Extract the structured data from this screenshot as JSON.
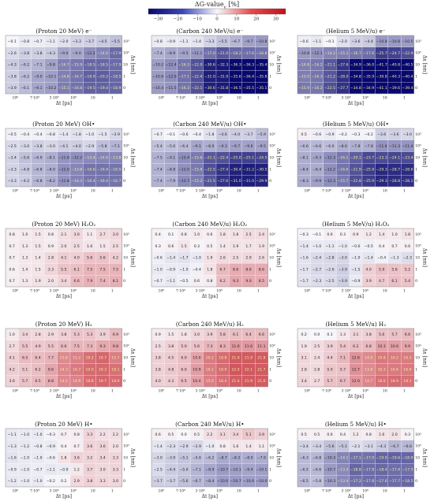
{
  "colorbar": {
    "label": "ΔG-value_{y} [%]",
    "ticks": [
      -30,
      -20,
      -10,
      0,
      10,
      20,
      30
    ],
    "range": [
      -35,
      35
    ],
    "colors": {
      "negative": "#08086e",
      "zero": "#f7f7fb",
      "positive": "#c0121c"
    }
  },
  "chart_data": [
    {
      "type": "heatmap",
      "title": "(Proton 20 MeV) e⁻",
      "xlabel": "Δt [ps]",
      "ylabel": "Δx [nm]",
      "x_ticks": [
        "10⁰",
        "7·10⁰",
        "3·10⁰",
        "10⁰",
        "10",
        "1"
      ],
      "y_ticks": [
        "10³",
        "10²",
        "10",
        "1",
        "0"
      ],
      "values": [
        [
          -0.1,
          -0.8,
          -0.7,
          -1.1,
          -2.0,
          -3.3,
          -3.7,
          -4.5,
          -5.5
        ],
        [
          -2.6,
          -3.8,
          -3.8,
          -4.3,
          -9.0,
          -9.0,
          -12.2,
          -14.0,
          -17.9
        ],
        [
          -4.3,
          -6.2,
          -7.1,
          -9.8,
          -14.7,
          -15.9,
          -18.5,
          -18.5,
          -17.9
        ],
        [
          -3.8,
          -6.2,
          -9.0,
          -10.1,
          -14.8,
          -16.7,
          -19.9,
          -20.2,
          -18.5
        ],
        [
          -3.9,
          -6.1,
          -9.1,
          -10.2,
          -15.1,
          -16.8,
          -19.5,
          -19.4,
          -18.9
        ]
      ]
    },
    {
      "type": "heatmap",
      "title": "(Carbon 240 MeV/u) e⁻",
      "xlabel": "Δt [ps]",
      "ylabel": "Δx [nm]",
      "x_ticks": [
        "10⁰",
        "7·10⁰",
        "3·10⁰",
        "10⁰",
        "10",
        "1"
      ],
      "y_ticks": [
        "10³",
        "10²",
        "10",
        "1",
        "0"
      ],
      "values": [
        [
          -0.8,
          -0.9,
          -1.1,
          -1.4,
          -3.3,
          -5.5,
          -6.7,
          -9.7,
          -10.8
        ],
        [
          -7.4,
          -8.9,
          -9.5,
          -11.1,
          -17.0,
          -21.0,
          -18.2,
          -17.6,
          -16.8
        ],
        [
          -10.2,
          -12.4,
          -16.3,
          -22.0,
          -30.6,
          -32.3,
          -36.3,
          -36.3,
          -35.4
        ],
        [
          -10.6,
          -12.6,
          -17.1,
          -22.4,
          -31.0,
          -31.9,
          -35.6,
          -36.4,
          -35.8
        ],
        [
          -10.4,
          -11.5,
          -16.3,
          -22.1,
          -30.6,
          -31.8,
          -36.5,
          -35.5,
          -35.1
        ]
      ]
    },
    {
      "type": "heatmap",
      "title": "(Helium 5 MeV/u) e⁻",
      "xlabel": "Δt [ps]",
      "ylabel": "Δx [nm]",
      "x_ticks": [
        "10⁰",
        "7·10⁰",
        "3·10⁰",
        "10⁰",
        "10",
        "1"
      ],
      "y_ticks": [
        "10³",
        "10²",
        "10",
        "1",
        "0"
      ],
      "values": [
        [
          -0.6,
          -1.1,
          -0.1,
          -2.0,
          -3.6,
          -4.4,
          -10.8,
          -10.8,
          -10.5
        ],
        [
          -10.8,
          -12.1,
          -14.2,
          -15.1,
          -16.7,
          -17.6,
          -25.7,
          -24.7,
          -22.9
        ],
        [
          -14.8,
          -16.2,
          -21.1,
          -27.6,
          -34.9,
          -36.0,
          -41.7,
          -40.8,
          -40.5
        ],
        [
          -15.0,
          -16.3,
          -21.2,
          -28.0,
          -34.8,
          -35.9,
          -39.8,
          -40.3,
          -40.4
        ],
        [
          -15.9,
          -16.2,
          -22.5,
          -27.7,
          -34.8,
          -34.9,
          -41.1,
          -39.6,
          -39.4
        ]
      ]
    },
    {
      "type": "heatmap",
      "title": "(Proton 20 MeV) OH•",
      "xlabel": "Δt [ps]",
      "ylabel": "Δx [nm]",
      "x_ticks": [
        "10⁰",
        "7·10⁰",
        "3·10⁰",
        "10⁰",
        "10",
        "1"
      ],
      "y_ticks": [
        "10³",
        "10²",
        "10",
        "1",
        "0"
      ],
      "values": [
        [
          -0.5,
          -0.4,
          -0.4,
          -0.8,
          -1.4,
          -1.8,
          -1.0,
          -1.5,
          -2.9
        ],
        [
          -2.5,
          -3.0,
          -3.8,
          -3.0,
          -4.1,
          -4.0,
          -2.9,
          -5.8,
          -7.1
        ],
        [
          -3.4,
          -5.6,
          -6.9,
          -8.1,
          -11.6,
          -12.2,
          -13.4,
          -14.0,
          -13.8
        ],
        [
          -3.3,
          -4.8,
          -6.8,
          -8.0,
          -12.0,
          -13.8,
          -16.6,
          -16.9,
          -16.5
        ],
        [
          -3.3,
          -4.2,
          -6.8,
          -8.2,
          -11.8,
          -14.3,
          -16.4,
          -16.4,
          -16.7
        ]
      ]
    },
    {
      "type": "heatmap",
      "title": "(Carbon 240 MeV/u) OH•",
      "xlabel": "Δt [ps]",
      "ylabel": "Δx [nm]",
      "x_ticks": [
        "10⁰",
        "7·10⁰",
        "3·10⁰",
        "10⁰",
        "10",
        "1"
      ],
      "y_ticks": [
        "10³",
        "10²",
        "10",
        "1",
        "0"
      ],
      "values": [
        [
          -0.7,
          -0.1,
          -0.6,
          -0.4,
          -1.8,
          -4.6,
          -4.0,
          -3.7,
          -5.9
        ],
        [
          -5.4,
          -5.6,
          -6.4,
          -9.1,
          -8.0,
          -9.3,
          -9.7,
          -9.6,
          -9.5
        ],
        [
          -7.5,
          -9.1,
          -12.4,
          -15.6,
          -21.1,
          -22.4,
          -25.0,
          -25.1,
          -24.5
        ],
        [
          -7.4,
          -8.8,
          -12.0,
          -15.8,
          -22.5,
          -27.4,
          -30.4,
          -31.2,
          -30.5
        ],
        [
          -7.4,
          -7.9,
          -12.7,
          -15.2,
          -21.5,
          -27.6,
          -31.0,
          -31.0,
          -29.9
        ]
      ]
    },
    {
      "type": "heatmap",
      "title": "(Helium 5 MeV/u) OH•",
      "xlabel": "Δt [ps]",
      "ylabel": "Δx [nm]",
      "x_ticks": [
        "10⁰",
        "7·10⁰",
        "3·10⁰",
        "10⁰",
        "10",
        "1"
      ],
      "y_ticks": [
        "10³",
        "10²",
        "10",
        "1",
        "0"
      ],
      "values": [
        [
          0.5,
          -0.6,
          -0.9,
          -0.2,
          -0.3,
          -0.2,
          -3.6,
          -3.6,
          -3.0
        ],
        [
          -6.6,
          -6.6,
          -6.0,
          -8.0,
          -7.8,
          -7.8,
          -11.6,
          -11.3,
          -11.4
        ],
        [
          -8.1,
          -9.3,
          -12.3,
          -16.1,
          -20.1,
          -23.7,
          -23.3,
          -24.1,
          -23.4
        ],
        [
          -8.4,
          -8.4,
          -12.2,
          -16.6,
          -21.9,
          -25.9,
          -29.3,
          -28.7,
          -28.6
        ],
        [
          -8.3,
          -9.9,
          -12.3,
          -15.7,
          -22.8,
          -25.9,
          -29.3,
          -28.8,
          -28.1
        ]
      ]
    },
    {
      "type": "heatmap",
      "title": "(Proton 20 MeV) H₂O₂",
      "xlabel": "Δt [ps]",
      "ylabel": "Δx [nm]",
      "x_ticks": [
        "10⁰",
        "7·10⁰",
        "3·10⁰",
        "10⁰",
        "10",
        "1"
      ],
      "y_ticks": [
        "10³",
        "10²",
        "10",
        "1",
        "0"
      ],
      "values": [
        [
          0.8,
          1.0,
          1.5,
          0.8,
          2.1,
          3.0,
          1.1,
          2.7,
          3.0
        ],
        [
          0.7,
          1.3,
          1.5,
          0.9,
          2.0,
          2.5,
          1.6,
          1.5,
          2.5
        ],
        [
          0.7,
          1.3,
          1.4,
          2.8,
          4.1,
          4.0,
          5.6,
          5.6,
          4.2
        ],
        [
          0.6,
          1.4,
          1.5,
          3.3,
          5.5,
          6.1,
          7.5,
          7.5,
          7.5
        ],
        [
          0.7,
          1.3,
          1.9,
          2.0,
          3.4,
          6.6,
          7.9,
          7.4,
          8.1
        ]
      ]
    },
    {
      "type": "heatmap",
      "title": "(Carbon 240 MeV/u) H₂O₂",
      "xlabel": "Δt [ps]",
      "ylabel": "Δx [nm]",
      "x_ticks": [
        "10⁰",
        "7·10⁰",
        "3·10⁰",
        "10⁰",
        "10",
        "1"
      ],
      "y_ticks": [
        "10³",
        "10²",
        "10",
        "1",
        "0"
      ],
      "values": [
        [
          0.4,
          0.1,
          0.8,
          1.0,
          0.6,
          1.8,
          1.8,
          2.5,
          2.4
        ],
        [
          0.3,
          0.6,
          1.5,
          0.3,
          0.5,
          1.4,
          1.9,
          1.7,
          1.9
        ],
        [
          -0.6,
          -1.4,
          -1.7,
          -1.0,
          1.9,
          2.6,
          2.5,
          2.9,
          2.6
        ],
        [
          -1.0,
          -0.9,
          -1.0,
          -0.4,
          1.8,
          6.7,
          8.6,
          8.6,
          8.6
        ],
        [
          -0.7,
          -1.1,
          -0.5,
          0.6,
          0.8,
          6.2,
          9.3,
          9.0,
          8.5
        ]
      ]
    },
    {
      "type": "heatmap",
      "title": "(Helium 5 MeV/u) H₂O₂",
      "xlabel": "Δt [ps]",
      "ylabel": "Δx [nm]",
      "x_ticks": [
        "10⁰",
        "7·10⁰",
        "3·10⁰",
        "10⁰",
        "10",
        "1"
      ],
      "y_ticks": [
        "10³",
        "10²",
        "10",
        "1",
        "0"
      ],
      "values": [
        [
          -0.3,
          -0.1,
          0.6,
          0.3,
          0.9,
          1.2,
          1.4,
          1.0,
          1.8
        ],
        [
          -1.4,
          -1.0,
          -1.1,
          -1.0,
          -0.6,
          -0.5,
          0.4,
          0.7,
          0.6
        ],
        [
          -1.6,
          -2.4,
          -2.8,
          -3.0,
          -1.0,
          -1.4,
          -0.4,
          -1.3,
          -2.3
        ],
        [
          -1.7,
          -2.7,
          -2.6,
          -3.9,
          -1.5,
          4.0,
          5.9,
          5.6,
          5.2
        ],
        [
          -1.7,
          -2.3,
          -2.5,
          -3.9,
          -0.9,
          3.9,
          4.7,
          6.1,
          5.4
        ]
      ]
    },
    {
      "type": "heatmap",
      "title": "(Proton 20 MeV) H₂",
      "xlabel": "Δt [ps]",
      "ylabel": "Δx [nm]",
      "x_ticks": [
        "10⁰",
        "7·10⁰",
        "3·10⁰",
        "10⁰",
        "10",
        "1"
      ],
      "y_ticks": [
        "10³",
        "10²",
        "10",
        "1",
        "0"
      ],
      "values": [
        [
          1.0,
          3.4,
          2.8,
          2.9,
          3.8,
          5.3,
          5.3,
          3.9,
          6.9
        ],
        [
          2.7,
          5.5,
          4.9,
          5.5,
          6.6,
          7.5,
          7.3,
          9.3,
          9.8
        ],
        [
          4.1,
          6.5,
          6.4,
          7.7,
          13.8,
          15.2,
          18.2,
          19.7,
          15.7
        ],
        [
          4.2,
          5.1,
          6.2,
          9.6,
          14.3,
          16.7,
          19.0,
          19.3,
          18.1
        ],
        [
          3.6,
          5.7,
          6.5,
          8.8,
          14.2,
          14.9,
          18.8,
          19.7,
          18.9
        ]
      ]
    },
    {
      "type": "heatmap",
      "title": "(Carbon 240 MeV/u) H₂",
      "xlabel": "Δt [ps]",
      "ylabel": "Δx [nm]",
      "x_ticks": [
        "10⁰",
        "7·10⁰",
        "3·10⁰",
        "10⁰",
        "10",
        "1"
      ],
      "y_ticks": [
        "10³",
        "10²",
        "10",
        "1",
        "0"
      ],
      "values": [
        [
          0.9,
          1.5,
          1.8,
          3.0,
          3.9,
          5.8,
          6.1,
          6.4,
          6.6
        ],
        [
          2.5,
          3.8,
          5.0,
          5.6,
          7.3,
          8.3,
          11.6,
          11.6,
          11.1
        ],
        [
          3.8,
          4.5,
          6.0,
          10.0,
          16.2,
          18.8,
          21.9,
          21.9,
          21.8
        ],
        [
          3.8,
          4.8,
          6.0,
          10.9,
          16.1,
          18.9,
          22.5,
          22.1,
          21.7
        ],
        [
          4.0,
          4.3,
          6.5,
          10.4,
          15.6,
          18.4,
          21.4,
          21.9,
          21.6
        ]
      ]
    },
    {
      "type": "heatmap",
      "title": "(Helium 5 MeV/u) H₂",
      "xlabel": "Δt [ps]",
      "ylabel": "Δx [nm]",
      "x_ticks": [
        "10⁰",
        "7·10⁰",
        "3·10⁰",
        "10⁰",
        "10",
        "1"
      ],
      "y_ticks": [
        "10³",
        "10²",
        "10",
        "1",
        "0"
      ],
      "values": [
        [
          0.2,
          -0.0,
          0.1,
          1.3,
          3.1,
          3.8,
          5.6,
          5.7,
          6.6
        ],
        [
          1.9,
          2.5,
          3.9,
          5.4,
          6.2,
          6.8,
          10.3,
          10.6,
          9.9
        ],
        [
          3.1,
          2.4,
          4.4,
          7.1,
          12.6,
          14.0,
          16.8,
          16.2,
          16.3
        ],
        [
          2.8,
          2.8,
          5.0,
          5.7,
          12.7,
          13.8,
          16.3,
          16.6,
          16.6
        ],
        [
          3.4,
          2.7,
          5.7,
          6.7,
          12.0,
          14.7,
          18.0,
          18.9,
          18.1
        ]
      ]
    },
    {
      "type": "heatmap",
      "title": "(Proton 20 MeV) H•",
      "xlabel": "Δt [ps]",
      "ylabel": "Δx [nm]",
      "x_ticks": [
        "10⁰",
        "7·10⁰",
        "3·10⁰",
        "10⁰",
        "10",
        "1"
      ],
      "y_ticks": [
        "10³",
        "10²",
        "10",
        "1",
        "0"
      ],
      "values": [
        [
          -1.1,
          -1.0,
          -1.0,
          -0.3,
          0.7,
          0.8,
          3.3,
          2.2,
          2.2
        ],
        [
          -1.3,
          -1.2,
          -0.8,
          -0.9,
          0.4,
          0.7,
          3.6,
          3.6,
          2.0
        ],
        [
          -1.6,
          -1.0,
          -1.0,
          -0.6,
          1.8,
          3.6,
          3.2,
          3.4,
          3.3
        ],
        [
          -0.9,
          -1.0,
          -0.7,
          -1.1,
          -0.9,
          1.2,
          3.7,
          3.0,
          3.3
        ],
        [
          -1.2,
          -1.0,
          -1.0,
          -0.2,
          0.2,
          2.9,
          3.8,
          3.3,
          3.0
        ]
      ]
    },
    {
      "type": "heatmap",
      "title": "(Carbon 240 MeV/u) H•",
      "xlabel": "Δt [ps]",
      "ylabel": "Δx [nm]",
      "x_ticks": [
        "10⁰",
        "7·10⁰",
        "3·10⁰",
        "10⁰",
        "10",
        "1"
      ],
      "y_ticks": [
        "10³",
        "10²",
        "10",
        "1",
        "0"
      ],
      "values": [
        [
          0.6,
          0.5,
          0.0,
          0.5,
          2.2,
          3.1,
          3.4,
          5.1,
          3.9
        ],
        [
          -1.4,
          -2.3,
          -2.9,
          -2.9,
          -1.0,
          0.8,
          1.6,
          1.4,
          1.1
        ],
        [
          -3.0,
          -3.9,
          -5.1,
          -5.6,
          -6.2,
          -8.7,
          -8.3,
          -8.0,
          -7.9
        ],
        [
          -2.5,
          -4.4,
          -5.0,
          -7.1,
          -8.9,
          -10.7,
          -10.1,
          -9.4,
          -10.1
        ],
        [
          -3.7,
          -3.7,
          -5.6,
          -6.7,
          -8.4,
          -10.6,
          -10.7,
          -10.0,
          -10.0
        ]
      ]
    },
    {
      "type": "heatmap",
      "title": "(Helium 5 MeV/u) H•",
      "xlabel": "Δt [ps]",
      "ylabel": "Δx [nm]",
      "x_ticks": [
        "10⁰",
        "7·10⁰",
        "3·10⁰",
        "10⁰",
        "10",
        "1"
      ],
      "y_ticks": [
        "10³",
        "10²",
        "10",
        "1",
        "0"
      ],
      "values": [
        [
          0.5,
          0.5,
          0.6,
          0.4,
          1.2,
          0.8,
          1.6,
          2.0,
          0.3
        ],
        [
          -3.4,
          -3.4,
          -5.6,
          -5.1,
          -2.1,
          -3.1,
          -4.3,
          -6.7,
          -6.6
        ],
        [
          -6.3,
          -6.8,
          -10.3,
          -14.1,
          -17.1,
          -17.0,
          -19.0,
          -19.6,
          -18.9
        ],
        [
          -6.5,
          -6.6,
          -10.7,
          -13.3,
          -18.8,
          -17.8,
          -18.4,
          -17.4,
          -17.5
        ],
        [
          -6.5,
          -5.8,
          -10.3,
          -13.4,
          -17.2,
          -17.8,
          -17.6,
          -17.7,
          -18.5
        ]
      ]
    }
  ]
}
